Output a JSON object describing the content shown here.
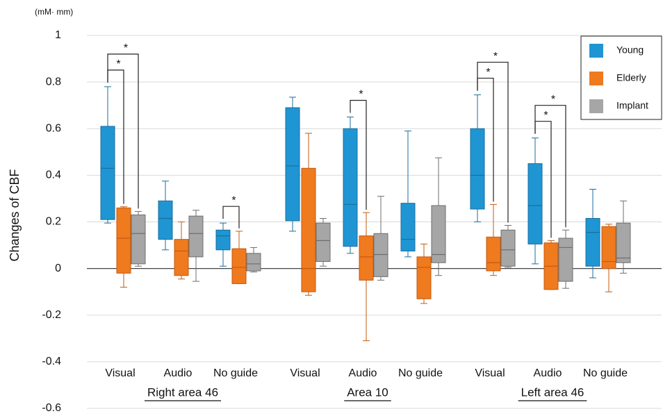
{
  "chart_data": {
    "type": "box",
    "unit_label": "(mM· mm)",
    "y_label": "Changes of CBF",
    "categories": [
      "Visual",
      "Audio",
      "No guide",
      "Visual",
      "Audio",
      "No guide",
      "Visual",
      "Audio",
      "No guide"
    ],
    "groups": [
      "Right area 46",
      "Area 10",
      "Left area 46"
    ],
    "ylim": [
      -0.6,
      1
    ],
    "yticks": [
      -0.6,
      -0.4,
      -0.2,
      0,
      0.2,
      0.4,
      0.6,
      0.8,
      1
    ],
    "grid": true,
    "legend": "top-right",
    "series": [
      {
        "name": "Young",
        "color": "#1f96d3",
        "values": [
          {
            "low": 0.195,
            "q1": 0.21,
            "median": 0.43,
            "q3": 0.61,
            "high": 0.78
          },
          {
            "low": 0.08,
            "q1": 0.125,
            "median": 0.215,
            "q3": 0.29,
            "high": 0.375
          },
          {
            "low": 0.01,
            "q1": 0.08,
            "median": 0.14,
            "q3": 0.165,
            "high": 0.195
          },
          {
            "low": 0.16,
            "q1": 0.205,
            "median": 0.44,
            "q3": 0.69,
            "high": 0.735
          },
          {
            "low": 0.065,
            "q1": 0.095,
            "median": 0.275,
            "q3": 0.6,
            "high": 0.65
          },
          {
            "low": 0.05,
            "q1": 0.075,
            "median": 0.125,
            "q3": 0.28,
            "high": 0.59
          },
          {
            "low": 0.2,
            "q1": 0.255,
            "median": 0.4,
            "q3": 0.6,
            "high": 0.745
          },
          {
            "low": 0.02,
            "q1": 0.105,
            "median": 0.27,
            "q3": 0.45,
            "high": 0.56
          },
          {
            "low": -0.04,
            "q1": 0.01,
            "median": 0.155,
            "q3": 0.215,
            "high": 0.34
          }
        ]
      },
      {
        "name": "Elderly",
        "color": "#f07a1e",
        "values": [
          {
            "low": -0.08,
            "q1": -0.02,
            "median": 0.13,
            "q3": 0.26,
            "high": 0.265
          },
          {
            "low": -0.045,
            "q1": -0.03,
            "median": 0.075,
            "q3": 0.125,
            "high": 0.2
          },
          {
            "low": -0.065,
            "q1": -0.065,
            "median": 0.005,
            "q3": 0.085,
            "high": 0.16
          },
          {
            "low": -0.115,
            "q1": -0.1,
            "median": 0,
            "q3": 0.43,
            "high": 0.58
          },
          {
            "low": -0.31,
            "q1": -0.05,
            "median": 0.05,
            "q3": 0.14,
            "high": 0.24
          },
          {
            "low": -0.15,
            "q1": -0.13,
            "median": 0.005,
            "q3": 0.05,
            "high": 0.105
          },
          {
            "low": -0.03,
            "q1": -0.01,
            "median": 0.025,
            "q3": 0.135,
            "high": 0.275
          },
          {
            "low": -0.09,
            "q1": -0.09,
            "median": 0.01,
            "q3": 0.11,
            "high": 0.12
          },
          {
            "low": -0.1,
            "q1": 0,
            "median": 0.03,
            "q3": 0.18,
            "high": 0.19
          }
        ]
      },
      {
        "name": "Implant",
        "color": "#a6a6a6",
        "values": [
          {
            "low": 0.01,
            "q1": 0.02,
            "median": 0.15,
            "q3": 0.23,
            "high": 0.245
          },
          {
            "low": -0.055,
            "q1": 0.05,
            "median": 0.15,
            "q3": 0.225,
            "high": 0.25
          },
          {
            "low": -0.015,
            "q1": -0.01,
            "median": 0.02,
            "q3": 0.065,
            "high": 0.09
          },
          {
            "low": 0.01,
            "q1": 0.03,
            "median": 0.12,
            "q3": 0.195,
            "high": 0.215
          },
          {
            "low": -0.05,
            "q1": -0.035,
            "median": 0.06,
            "q3": 0.15,
            "high": 0.31
          },
          {
            "low": -0.03,
            "q1": 0.025,
            "median": 0.06,
            "q3": 0.27,
            "high": 0.475
          },
          {
            "low": 0.005,
            "q1": 0.01,
            "median": 0.08,
            "q3": 0.165,
            "high": 0.185
          },
          {
            "low": -0.085,
            "q1": -0.055,
            "median": 0.09,
            "q3": 0.13,
            "high": 0.165
          },
          {
            "low": -0.02,
            "q1": 0.025,
            "median": 0.045,
            "q3": 0.195,
            "high": 0.29
          }
        ]
      }
    ],
    "significance": [
      {
        "category": 0,
        "from": 0,
        "to": 1,
        "label": "*"
      },
      {
        "category": 0,
        "from": 0,
        "to": 2,
        "label": "*"
      },
      {
        "category": 2,
        "from": 0,
        "to": 1,
        "label": "*"
      },
      {
        "category": 4,
        "from": 0,
        "to": 1,
        "label": "*"
      },
      {
        "category": 6,
        "from": 0,
        "to": 1,
        "label": "*"
      },
      {
        "category": 6,
        "from": 0,
        "to": 2,
        "label": "*"
      },
      {
        "category": 7,
        "from": 0,
        "to": 1,
        "label": "*"
      },
      {
        "category": 7,
        "from": 0,
        "to": 2,
        "label": "*"
      }
    ]
  }
}
